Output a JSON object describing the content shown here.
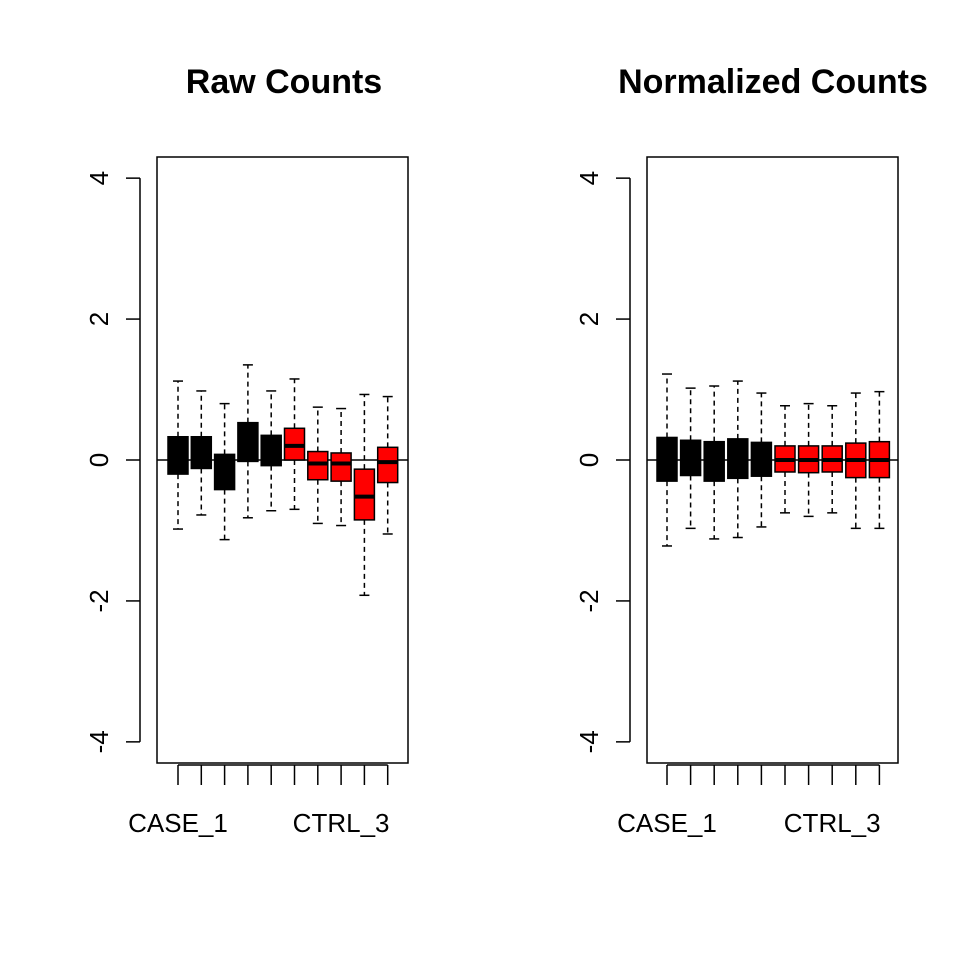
{
  "chart_data": [
    {
      "type": "box",
      "title": "Raw Counts",
      "ylim": [
        -4.3,
        4.3
      ],
      "y_ticks": [
        -4,
        -2,
        0,
        2,
        4
      ],
      "y_tick_labels": [
        "-4",
        "-2",
        "0",
        "2",
        "4"
      ],
      "x_tick_labels_shown": [
        "CASE_1",
        "CTRL_3"
      ],
      "reference_line_y": 0,
      "grid": false,
      "boxes": [
        {
          "group": "CASE",
          "color": "#000000",
          "whisker_low": -0.98,
          "q1": -0.2,
          "median": 0.0,
          "q3": 0.33,
          "whisker_high": 1.12
        },
        {
          "group": "CASE",
          "color": "#000000",
          "whisker_low": -0.78,
          "q1": -0.12,
          "median": 0.03,
          "q3": 0.33,
          "whisker_high": 0.98
        },
        {
          "group": "CASE",
          "color": "#000000",
          "whisker_low": -1.13,
          "q1": -0.42,
          "median": -0.17,
          "q3": 0.08,
          "whisker_high": 0.8
        },
        {
          "group": "CASE",
          "color": "#000000",
          "whisker_low": -0.82,
          "q1": -0.02,
          "median": 0.3,
          "q3": 0.53,
          "whisker_high": 1.35
        },
        {
          "group": "CASE",
          "color": "#000000",
          "whisker_low": -0.72,
          "q1": -0.08,
          "median": 0.13,
          "q3": 0.35,
          "whisker_high": 0.98
        },
        {
          "group": "CTRL",
          "color": "#ff0000",
          "whisker_low": -0.7,
          "q1": 0.0,
          "median": 0.2,
          "q3": 0.45,
          "whisker_high": 1.15
        },
        {
          "group": "CTRL",
          "color": "#ff0000",
          "whisker_low": -0.9,
          "q1": -0.28,
          "median": -0.05,
          "q3": 0.12,
          "whisker_high": 0.75
        },
        {
          "group": "CTRL",
          "color": "#ff0000",
          "whisker_low": -0.93,
          "q1": -0.3,
          "median": -0.05,
          "q3": 0.1,
          "whisker_high": 0.73
        },
        {
          "group": "CTRL",
          "color": "#ff0000",
          "whisker_low": -1.92,
          "q1": -0.85,
          "median": -0.52,
          "q3": -0.13,
          "whisker_high": 0.93
        },
        {
          "group": "CTRL",
          "color": "#ff0000",
          "whisker_low": -1.05,
          "q1": -0.32,
          "median": -0.03,
          "q3": 0.18,
          "whisker_high": 0.9
        }
      ]
    },
    {
      "type": "box",
      "title": "Normalized Counts",
      "ylim": [
        -4.3,
        4.3
      ],
      "y_ticks": [
        -4,
        -2,
        0,
        2,
        4
      ],
      "y_tick_labels": [
        "-4",
        "-2",
        "0",
        "2",
        "4"
      ],
      "x_tick_labels_shown": [
        "CASE_1",
        "CTRL_3"
      ],
      "reference_line_y": 0,
      "grid": false,
      "boxes": [
        {
          "group": "CASE",
          "color": "#000000",
          "whisker_low": -1.22,
          "q1": -0.3,
          "median": 0.0,
          "q3": 0.32,
          "whisker_high": 1.22
        },
        {
          "group": "CASE",
          "color": "#000000",
          "whisker_low": -0.97,
          "q1": -0.22,
          "median": 0.0,
          "q3": 0.28,
          "whisker_high": 1.02
        },
        {
          "group": "CASE",
          "color": "#000000",
          "whisker_low": -1.12,
          "q1": -0.3,
          "median": 0.0,
          "q3": 0.26,
          "whisker_high": 1.05
        },
        {
          "group": "CASE",
          "color": "#000000",
          "whisker_low": -1.1,
          "q1": -0.26,
          "median": 0.0,
          "q3": 0.3,
          "whisker_high": 1.12
        },
        {
          "group": "CASE",
          "color": "#000000",
          "whisker_low": -0.95,
          "q1": -0.23,
          "median": 0.0,
          "q3": 0.25,
          "whisker_high": 0.95
        },
        {
          "group": "CTRL",
          "color": "#ff0000",
          "whisker_low": -0.75,
          "q1": -0.17,
          "median": 0.0,
          "q3": 0.2,
          "whisker_high": 0.77
        },
        {
          "group": "CTRL",
          "color": "#ff0000",
          "whisker_low": -0.8,
          "q1": -0.18,
          "median": 0.0,
          "q3": 0.2,
          "whisker_high": 0.8
        },
        {
          "group": "CTRL",
          "color": "#ff0000",
          "whisker_low": -0.75,
          "q1": -0.17,
          "median": 0.0,
          "q3": 0.2,
          "whisker_high": 0.77
        },
        {
          "group": "CTRL",
          "color": "#ff0000",
          "whisker_low": -0.97,
          "q1": -0.25,
          "median": 0.0,
          "q3": 0.24,
          "whisker_high": 0.95
        },
        {
          "group": "CTRL",
          "color": "#ff0000",
          "whisker_low": -0.97,
          "q1": -0.25,
          "median": 0.0,
          "q3": 0.26,
          "whisker_high": 0.97
        }
      ]
    }
  ]
}
